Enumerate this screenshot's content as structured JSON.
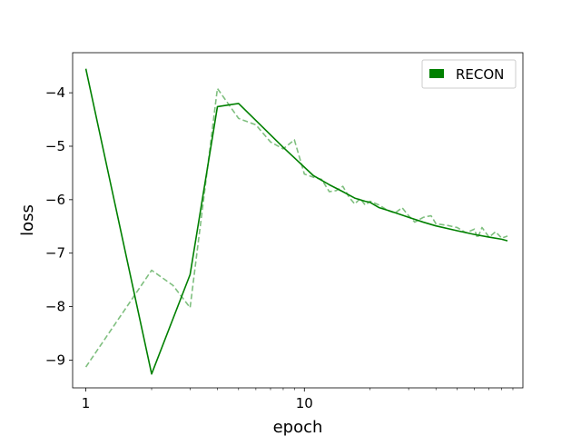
{
  "chart_data": {
    "type": "line",
    "title": "",
    "xlabel": "epoch",
    "ylabel": "loss",
    "x_scale": "log",
    "xlim": [
      0.87,
      100
    ],
    "ylim": [
      -9.52,
      -3.25
    ],
    "x_major_ticks": [
      1,
      10
    ],
    "x_tick_labels": [
      "1",
      "10"
    ],
    "x_minor_ticks": [
      2,
      3,
      4,
      5,
      6,
      7,
      8,
      9,
      20,
      30,
      40,
      50,
      60,
      70,
      80,
      90
    ],
    "y_ticks": [
      -9,
      -8,
      -7,
      -6,
      -5,
      -4
    ],
    "y_tick_labels": [
      "−9",
      "−8",
      "−7",
      "−6",
      "−5",
      "−4"
    ],
    "grid": false,
    "legend": {
      "entries": [
        "RECON"
      ],
      "position": "top-right"
    },
    "colors": {
      "smoothed": "#008000",
      "raw": "#7fbf7f"
    },
    "series": [
      {
        "name": "RECON",
        "style": "solid",
        "x": [
          1,
          2,
          3,
          4,
          5,
          8,
          11,
          13,
          15,
          17,
          19,
          20,
          22,
          25,
          30,
          35,
          40,
          50,
          60,
          70,
          80,
          85
        ],
        "y": [
          -3.55,
          -9.26,
          -7.4,
          -4.26,
          -4.2,
          -5.02,
          -5.55,
          -5.72,
          -5.85,
          -5.97,
          -6.03,
          -6.05,
          -6.15,
          -6.22,
          -6.33,
          -6.42,
          -6.49,
          -6.58,
          -6.65,
          -6.7,
          -6.74,
          -6.77
        ]
      },
      {
        "style": "dashed",
        "x": [
          1,
          2,
          2.5,
          3,
          4,
          5,
          6,
          7,
          8,
          9,
          10,
          11,
          12,
          13,
          14,
          15,
          16,
          17,
          18,
          19,
          20,
          22,
          24,
          26,
          28,
          30,
          32,
          35,
          38,
          40,
          45,
          50,
          55,
          60,
          62,
          65,
          70,
          75,
          80,
          85
        ],
        "y": [
          -9.13,
          -7.32,
          -7.6,
          -8.02,
          -3.92,
          -4.48,
          -4.6,
          -4.92,
          -5.05,
          -4.88,
          -5.52,
          -5.58,
          -5.62,
          -5.85,
          -5.83,
          -5.75,
          -5.95,
          -6.08,
          -5.98,
          -6.1,
          -6.03,
          -6.1,
          -6.2,
          -6.25,
          -6.15,
          -6.3,
          -6.42,
          -6.33,
          -6.3,
          -6.45,
          -6.48,
          -6.52,
          -6.62,
          -6.55,
          -6.72,
          -6.52,
          -6.7,
          -6.6,
          -6.72,
          -6.68
        ]
      }
    ]
  }
}
